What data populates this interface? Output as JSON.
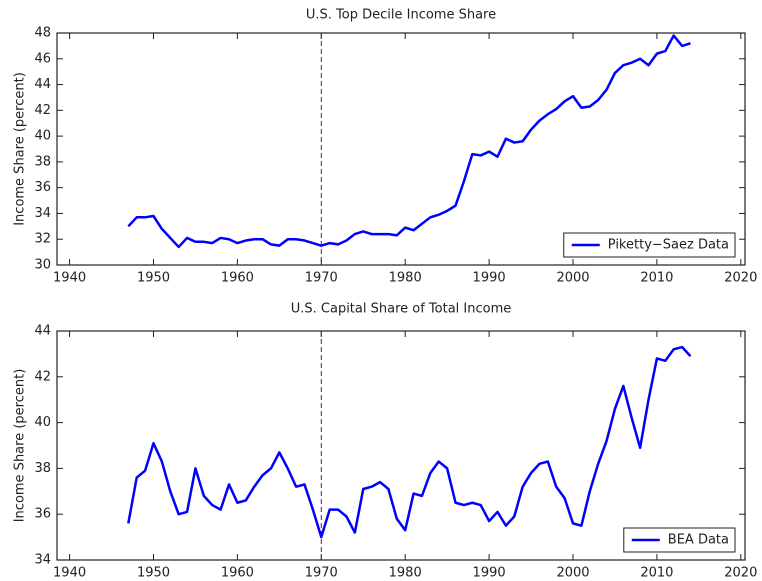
{
  "chart_data": [
    {
      "type": "line",
      "title": "U.S. Top Decile Income Share",
      "y_label": "Income Share (percent)",
      "x": [
        1947,
        1948,
        1949,
        1950,
        1951,
        1952,
        1953,
        1954,
        1955,
        1956,
        1957,
        1958,
        1959,
        1960,
        1961,
        1962,
        1963,
        1964,
        1965,
        1966,
        1967,
        1968,
        1969,
        1970,
        1971,
        1972,
        1973,
        1974,
        1975,
        1976,
        1977,
        1978,
        1979,
        1980,
        1981,
        1982,
        1983,
        1984,
        1985,
        1986,
        1987,
        1988,
        1989,
        1990,
        1991,
        1992,
        1993,
        1994,
        1995,
        1996,
        1997,
        1998,
        1999,
        2000,
        2001,
        2002,
        2003,
        2004,
        2005,
        2006,
        2007,
        2008,
        2009,
        2010,
        2011,
        2012,
        2013,
        2014
      ],
      "series": [
        {
          "name": "Piketty−Saez Data",
          "color": "#0000ff",
          "values": [
            33.0,
            33.7,
            33.7,
            33.8,
            32.8,
            32.1,
            31.4,
            32.1,
            31.8,
            31.8,
            31.7,
            32.1,
            32.0,
            31.7,
            31.9,
            32.0,
            32.0,
            31.6,
            31.5,
            32.0,
            32.0,
            31.9,
            31.7,
            31.5,
            31.7,
            31.6,
            31.9,
            32.4,
            32.6,
            32.4,
            32.4,
            32.4,
            32.3,
            32.9,
            32.7,
            33.2,
            33.7,
            33.9,
            34.2,
            34.6,
            36.5,
            38.6,
            38.5,
            38.8,
            38.4,
            39.8,
            39.5,
            39.6,
            40.5,
            41.2,
            41.7,
            42.1,
            42.7,
            43.1,
            42.2,
            42.3,
            42.8,
            43.6,
            44.9,
            45.5,
            45.7,
            46.0,
            45.5,
            46.4,
            46.6,
            47.8,
            47.0,
            47.2
          ]
        }
      ],
      "xlim": [
        1938.5,
        2020.5
      ],
      "xticks": [
        1940,
        1950,
        1960,
        1970,
        1980,
        1990,
        2000,
        2010,
        2020
      ],
      "ylim": [
        30,
        48
      ],
      "yticks": [
        30,
        32,
        34,
        36,
        38,
        40,
        42,
        44,
        46,
        48
      ],
      "vline": 1970,
      "vline_color": "#800080",
      "legend": "lower right"
    },
    {
      "type": "line",
      "title": "U.S. Capital Share of Total Income",
      "y_label": "Income Share (percent)",
      "x": [
        1947,
        1948,
        1949,
        1950,
        1951,
        1952,
        1953,
        1954,
        1955,
        1956,
        1957,
        1958,
        1959,
        1960,
        1961,
        1962,
        1963,
        1964,
        1965,
        1966,
        1967,
        1968,
        1969,
        1970,
        1971,
        1972,
        1973,
        1974,
        1975,
        1976,
        1977,
        1978,
        1979,
        1980,
        1981,
        1982,
        1983,
        1984,
        1985,
        1986,
        1987,
        1988,
        1989,
        1990,
        1991,
        1992,
        1993,
        1994,
        1995,
        1996,
        1997,
        1998,
        1999,
        2000,
        2001,
        2002,
        2003,
        2004,
        2005,
        2006,
        2007,
        2008,
        2009,
        2010,
        2011,
        2012,
        2013,
        2014
      ],
      "series": [
        {
          "name": "BEA Data",
          "color": "#0000ff",
          "values": [
            35.6,
            37.6,
            37.9,
            39.1,
            38.3,
            37.0,
            36.0,
            36.1,
            38.0,
            36.8,
            36.4,
            36.2,
            37.3,
            36.5,
            36.6,
            37.2,
            37.7,
            38.0,
            38.7,
            38.0,
            37.2,
            37.3,
            36.2,
            35.0,
            36.2,
            36.2,
            35.9,
            35.2,
            37.1,
            37.2,
            37.4,
            37.1,
            35.8,
            35.3,
            36.9,
            36.8,
            37.8,
            38.3,
            38.0,
            36.5,
            36.4,
            36.5,
            36.4,
            35.7,
            36.1,
            35.5,
            35.9,
            37.2,
            37.8,
            38.2,
            38.3,
            37.2,
            36.7,
            35.6,
            35.5,
            37.0,
            38.2,
            39.2,
            40.6,
            41.6,
            40.2,
            38.9,
            41.0,
            42.8,
            42.7,
            43.2,
            43.3,
            42.9
          ]
        }
      ],
      "xlim": [
        1938.5,
        2020.5
      ],
      "xticks": [
        1940,
        1950,
        1960,
        1970,
        1980,
        1990,
        2000,
        2010,
        2020
      ],
      "ylim": [
        34,
        44
      ],
      "yticks": [
        34,
        36,
        38,
        40,
        42,
        44
      ],
      "vline": 1970,
      "vline_color": "#800080",
      "legend": "lower right"
    }
  ]
}
